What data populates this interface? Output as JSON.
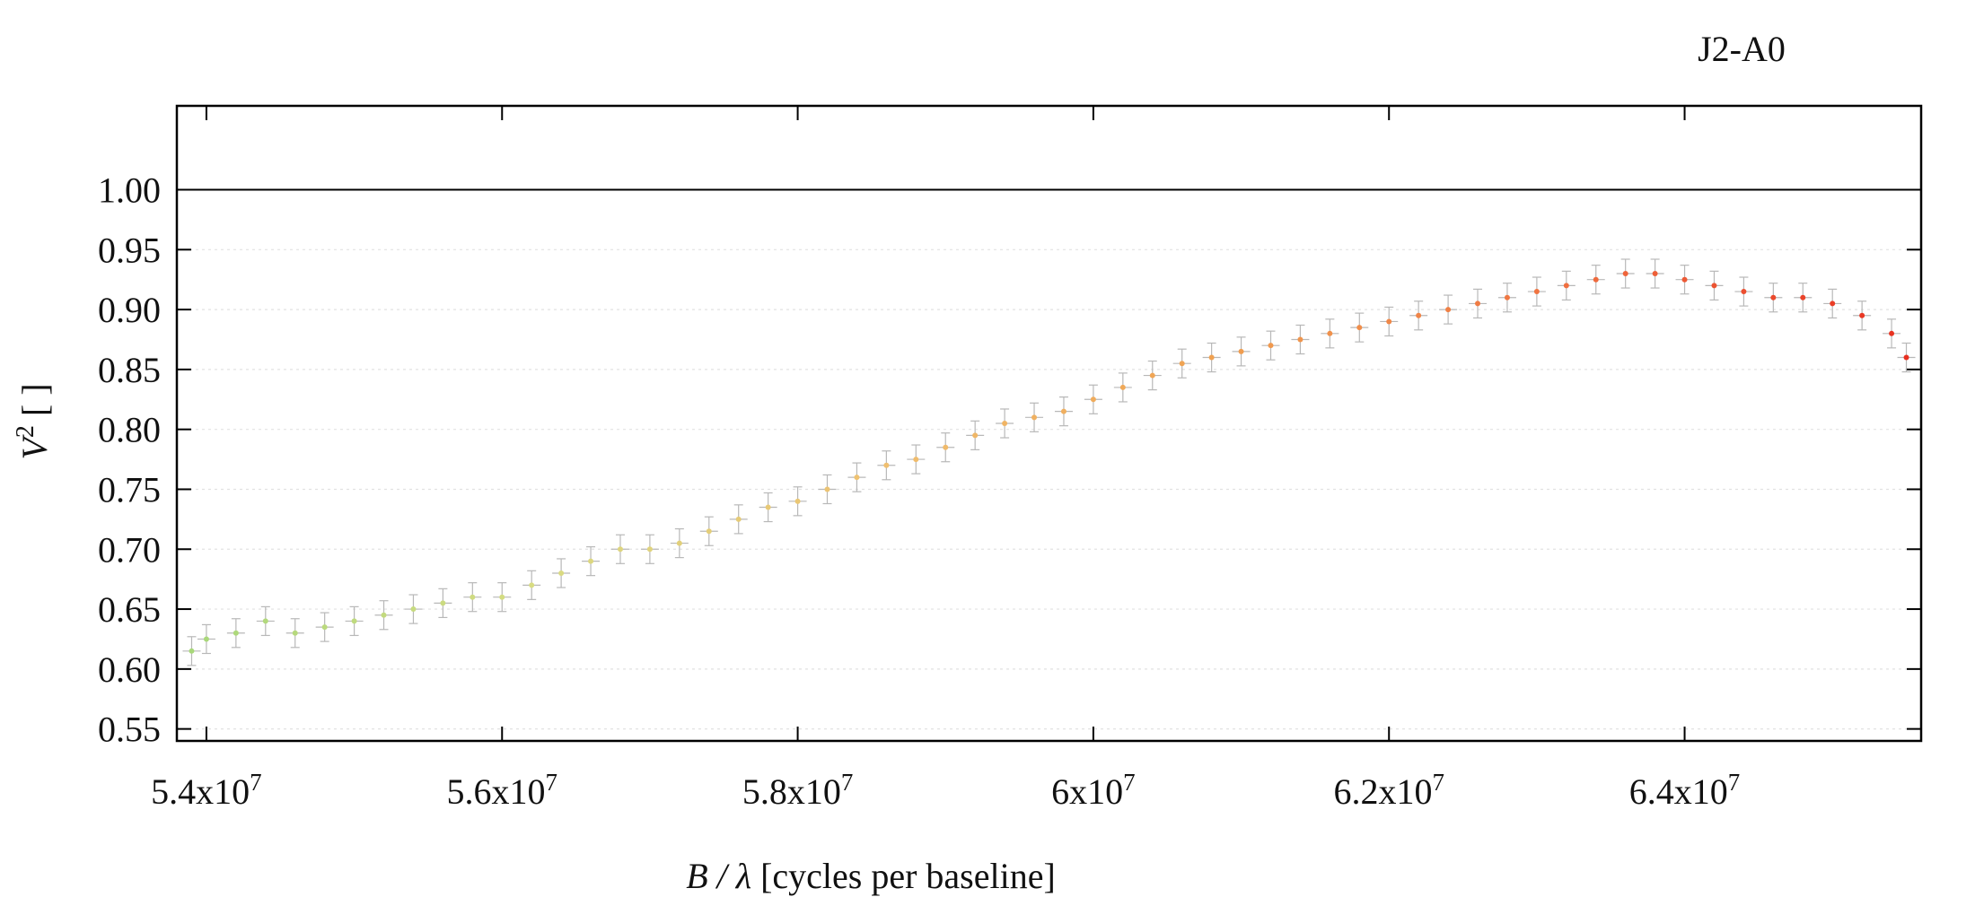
{
  "chart_data": {
    "type": "scatter",
    "label": "J2-A0",
    "xlabel_var": "B / λ",
    "xlabel_units": " [cycles per baseline]",
    "ylabel_var": "V",
    "ylabel_sup": "2",
    "ylabel_units": " [ ]",
    "xlim": [
      53800000,
      65600000
    ],
    "ylim": [
      0.54,
      1.07
    ],
    "x_ticks": [
      {
        "value": 54000000,
        "mantissa": "5.4x10",
        "exp": "7"
      },
      {
        "value": 56000000,
        "mantissa": "5.6x10",
        "exp": "7"
      },
      {
        "value": 58000000,
        "mantissa": "5.8x10",
        "exp": "7"
      },
      {
        "value": 60000000,
        "mantissa": "6x10",
        "exp": "7"
      },
      {
        "value": 62000000,
        "mantissa": "6.2x10",
        "exp": "7"
      },
      {
        "value": 64000000,
        "mantissa": "6.4x10",
        "exp": "7"
      }
    ],
    "y_ticks": [
      {
        "value": 0.55,
        "label": "0.55"
      },
      {
        "value": 0.6,
        "label": "0.60"
      },
      {
        "value": 0.65,
        "label": "0.65"
      },
      {
        "value": 0.7,
        "label": "0.70"
      },
      {
        "value": 0.75,
        "label": "0.75"
      },
      {
        "value": 0.8,
        "label": "0.80"
      },
      {
        "value": 0.85,
        "label": "0.85"
      },
      {
        "value": 0.9,
        "label": "0.90"
      },
      {
        "value": 0.95,
        "label": "0.95"
      },
      {
        "value": 1.0,
        "label": "1.00"
      }
    ],
    "grid": "horizontal-dotted",
    "reference_line_y": 1.0,
    "errorbar_color": "#b8b8b8",
    "color_scale": [
      "#a8d87a",
      "#d8dc82",
      "#f0c070",
      "#f0a050",
      "#f07040",
      "#e83020"
    ],
    "series": [
      {
        "x": [
          53900000,
          54000000,
          54200000,
          54400000,
          54600000,
          54800000,
          55000000,
          55200000,
          55400000,
          55600000,
          55800000,
          56000000,
          56200000,
          56400000,
          56600000,
          56800000,
          57000000,
          57200000,
          57400000,
          57600000,
          57800000,
          58000000,
          58200000,
          58400000,
          58600000,
          58800000,
          59000000,
          59200000,
          59400000,
          59600000,
          59800000,
          60000000,
          60200000,
          60400000,
          60600000,
          60800000,
          61000000,
          61200000,
          61400000,
          61600000,
          61800000,
          62000000,
          62200000,
          62400000,
          62600000,
          62800000,
          63000000,
          63200000,
          63400000,
          63600000,
          63800000,
          64000000,
          64200000,
          64400000,
          64600000,
          64800000,
          65000000,
          65200000,
          65400000,
          65500000
        ],
        "y": [
          0.615,
          0.625,
          0.63,
          0.64,
          0.63,
          0.635,
          0.64,
          0.645,
          0.65,
          0.655,
          0.66,
          0.66,
          0.67,
          0.68,
          0.69,
          0.7,
          0.7,
          0.705,
          0.715,
          0.725,
          0.735,
          0.74,
          0.75,
          0.76,
          0.77,
          0.775,
          0.785,
          0.795,
          0.805,
          0.81,
          0.815,
          0.825,
          0.835,
          0.845,
          0.855,
          0.86,
          0.865,
          0.87,
          0.875,
          0.88,
          0.885,
          0.89,
          0.895,
          0.9,
          0.905,
          0.91,
          0.915,
          0.92,
          0.925,
          0.93,
          0.93,
          0.925,
          0.92,
          0.915,
          0.91,
          0.91,
          0.905,
          0.895,
          0.88,
          0.86
        ]
      }
    ]
  }
}
